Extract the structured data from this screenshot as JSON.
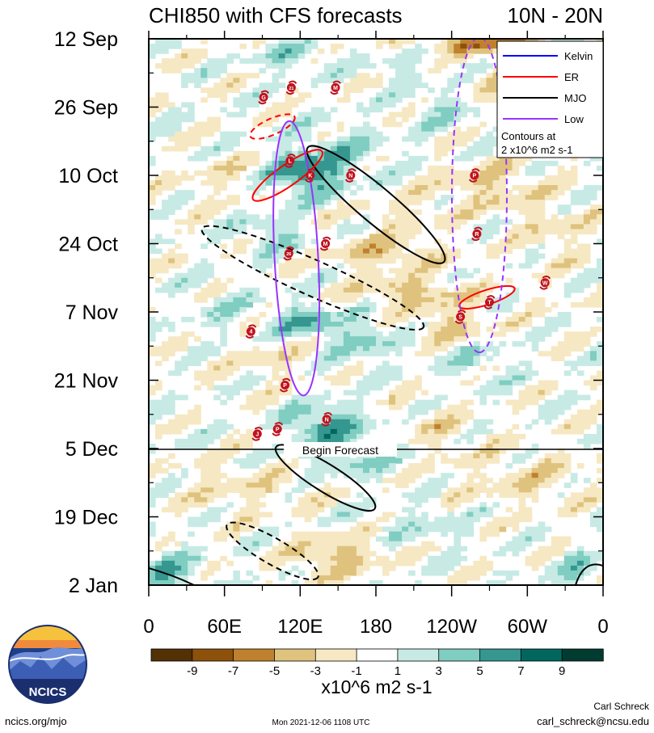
{
  "chart_data": {
    "type": "heatmap",
    "title": "CHI850 with CFS forecasts",
    "lat_band": "10N - 20N",
    "xlabel": "",
    "ylabel": "",
    "x_range": [
      0,
      360
    ],
    "x_ticks": [
      {
        "lon": 0,
        "label": "0"
      },
      {
        "lon": 60,
        "label": "60E"
      },
      {
        "lon": 120,
        "label": "120E"
      },
      {
        "lon": 180,
        "label": "180"
      },
      {
        "lon": 240,
        "label": "120W"
      },
      {
        "lon": 300,
        "label": "60W"
      },
      {
        "lon": 360,
        "label": "0"
      }
    ],
    "y_range_days": [
      0,
      112
    ],
    "y_ticks": [
      {
        "day": 0,
        "label": "12 Sep"
      },
      {
        "day": 14,
        "label": "26 Sep"
      },
      {
        "day": 28,
        "label": "10 Oct"
      },
      {
        "day": 42,
        "label": "24 Oct"
      },
      {
        "day": 56,
        "label": "7 Nov"
      },
      {
        "day": 70,
        "label": "21 Nov"
      },
      {
        "day": 84,
        "label": "5 Dec"
      },
      {
        "day": 98,
        "label": "19 Dec"
      },
      {
        "day": 112,
        "label": "2 Jan"
      }
    ],
    "begin_forecast": {
      "day": 84,
      "label": "Begin Forecast"
    },
    "legend": {
      "position": "top-right",
      "entries": [
        {
          "name": "Kelvin",
          "color": "#0000ff"
        },
        {
          "name": "ER",
          "color": "#ff0000"
        },
        {
          "name": "MJO",
          "color": "#000000"
        },
        {
          "name": "Low",
          "color": "#9933ff"
        }
      ],
      "note_line1": "Contours at",
      "note_line2": "2 x10^6 m2 s-1"
    },
    "colorbar": {
      "labels": [
        "-9",
        "-7",
        "-5",
        "-3",
        "-1",
        "1",
        "3",
        "5",
        "7",
        "9"
      ],
      "colors": [
        "#543005",
        "#8c510a",
        "#bf812d",
        "#dfc27d",
        "#f6e8c3",
        "#ffffff",
        "#c7eae5",
        "#80cdc1",
        "#35978f",
        "#01665e",
        "#003c30"
      ],
      "units": "x10^6 m2 s-1"
    },
    "features": [
      {
        "name": "MJO",
        "lon": 180,
        "day": 34,
        "style": "solid"
      },
      {
        "name": "MJO",
        "lon": 130,
        "day": 49,
        "style": "dashed"
      },
      {
        "name": "MJO",
        "lon": 140,
        "day": 90,
        "style": "solid"
      },
      {
        "name": "MJO",
        "lon": 98,
        "day": 105,
        "style": "dashed"
      },
      {
        "name": "ER",
        "lon": 110,
        "day": 28,
        "style": "solid"
      },
      {
        "name": "ER",
        "lon": 98,
        "day": 18,
        "style": "dashed"
      },
      {
        "name": "ER",
        "lon": 268,
        "day": 53,
        "style": "solid"
      },
      {
        "name": "Low",
        "lon": 117,
        "day": 45,
        "style": "solid"
      },
      {
        "name": "Low",
        "lon": 262,
        "day": 32,
        "style": "dashed"
      }
    ],
    "storms": [
      {
        "label": "G",
        "lon": 91,
        "day": 12
      },
      {
        "label": "21",
        "lon": 113,
        "day": 10
      },
      {
        "label": "M",
        "lon": 148,
        "day": 10
      },
      {
        "label": "L",
        "lon": 112,
        "day": 25
      },
      {
        "label": "K",
        "lon": 128,
        "day": 28
      },
      {
        "label": "N",
        "lon": 160,
        "day": 28
      },
      {
        "label": "P",
        "lon": 258,
        "day": 28
      },
      {
        "label": "M",
        "lon": 140,
        "day": 42
      },
      {
        "label": "26",
        "lon": 111,
        "day": 44
      },
      {
        "label": "R",
        "lon": 260,
        "day": 40
      },
      {
        "label": "W",
        "lon": 314,
        "day": 50
      },
      {
        "label": "T",
        "lon": 270,
        "day": 54
      },
      {
        "label": "S",
        "lon": 247,
        "day": 57
      },
      {
        "label": "4",
        "lon": 81,
        "day": 60
      },
      {
        "label": "P",
        "lon": 108,
        "day": 71
      },
      {
        "label": "N",
        "lon": 141,
        "day": 78
      },
      {
        "label": "P",
        "lon": 102,
        "day": 80
      },
      {
        "label": "J",
        "lon": 86,
        "day": 81
      }
    ]
  },
  "footer": {
    "site": "ncics.org/mjo",
    "timestamp": "Mon 2021-12-06 1108 UTC",
    "author": "Carl Schreck",
    "email": "carl_schreck@ncsu.edu",
    "logo_text": "NCICS"
  }
}
